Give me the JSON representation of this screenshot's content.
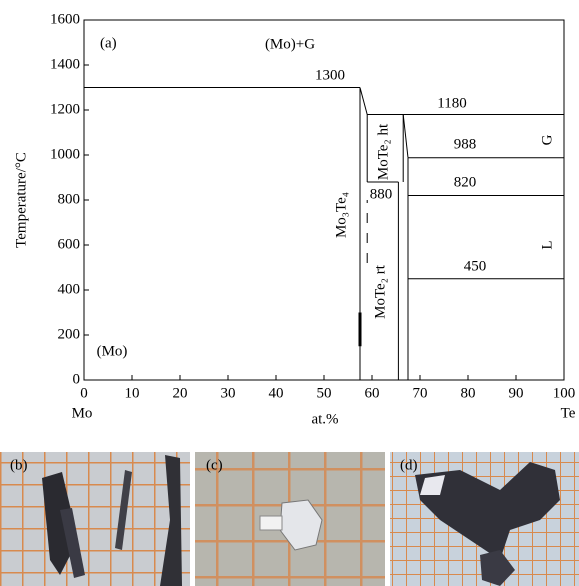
{
  "chart_data": {
    "type": "line",
    "panel_label": "(a)",
    "xlabel": "at.%",
    "ylabel": "Temperature/°C",
    "x_left_label": "Mo",
    "x_right_label": "Te",
    "xlim": [
      0,
      100
    ],
    "ylim": [
      0,
      1600
    ],
    "xticks": [
      0,
      10,
      20,
      30,
      40,
      50,
      60,
      70,
      80,
      90,
      100
    ],
    "yticks": [
      0,
      200,
      400,
      600,
      800,
      1000,
      1200,
      1400,
      1600
    ],
    "color": "#000000",
    "lines": [
      {
        "x": [
          0,
          57.5
        ],
        "y": [
          1300,
          1300
        ]
      },
      {
        "x": [
          57.5,
          57.5
        ],
        "y": [
          0,
          1300
        ]
      },
      {
        "x": [
          57.5,
          59
        ],
        "y": [
          1300,
          1180
        ]
      },
      {
        "x": [
          59,
          100
        ],
        "y": [
          1180,
          1180
        ]
      },
      {
        "x": [
          59,
          59
        ],
        "y": [
          880,
          1180
        ]
      },
      {
        "x": [
          59,
          65.5
        ],
        "y": [
          880,
          880
        ]
      },
      {
        "x": [
          65.5,
          65.5
        ],
        "y": [
          0,
          880
        ]
      },
      {
        "x": [
          66.5,
          66.5
        ],
        "y": [
          880,
          1180
        ]
      },
      {
        "x": [
          67.5,
          67.5
        ],
        "y": [
          0,
          988
        ]
      },
      {
        "x": [
          66.5,
          67.5
        ],
        "y": [
          1180,
          988
        ]
      },
      {
        "x": [
          67.5,
          100
        ],
        "y": [
          988,
          988
        ]
      },
      {
        "x": [
          67.5,
          100
        ],
        "y": [
          820,
          820
        ]
      },
      {
        "x": [
          67.5,
          100
        ],
        "y": [
          450,
          450
        ]
      },
      {
        "x": [
          59,
          59
        ],
        "y": [
          520,
          800
        ],
        "dashed": true
      },
      {
        "x": [
          57.5,
          57.5
        ],
        "y": [
          150,
          300
        ],
        "bold": true
      }
    ],
    "annotations": [
      "(Mo)+G",
      "(Mo)",
      "G",
      "L",
      "Mo₃Te₄",
      "MoTe₂ ht",
      "MoTe₂ rt"
    ]
  },
  "photos": [
    "(b)",
    "(c)",
    "(d)"
  ]
}
